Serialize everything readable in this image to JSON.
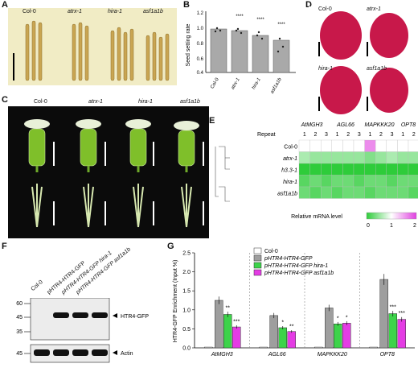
{
  "panels": {
    "a": "A",
    "b": "B",
    "c": "C",
    "d": "D",
    "e": "E",
    "f": "F",
    "g": "G"
  },
  "genotypes": [
    "Col-0",
    "atrx-1",
    "hira-1",
    "asf1a1b"
  ],
  "panel_b": {
    "ylabel": "Seed setting rate",
    "yticks": [
      "1.2",
      "1.0",
      "0.8",
      "0.6",
      "0.4"
    ],
    "stars": [
      "",
      "****",
      "****",
      "****"
    ]
  },
  "panel_e": {
    "genes": [
      "AtMGH3",
      "AGL66",
      "MAPKKK20",
      "OPT8"
    ],
    "repeat_label": "Repeat",
    "repeats": [
      "1",
      "2",
      "3"
    ],
    "rows": [
      "Col-0",
      "atrx-1",
      "h3.3-1",
      "hira-1",
      "asf1a1b"
    ],
    "legend_title": "Relative mRNA level",
    "legend_ticks": [
      "0",
      "1",
      "2"
    ],
    "colors": {
      "low": "#2ecc3a",
      "mid": "#ffffff",
      "high": "#e040e0"
    },
    "values": [
      [
        1,
        1,
        1,
        1,
        1,
        1,
        1.6,
        1,
        1,
        1,
        1,
        1.8
      ],
      [
        0.6,
        0.5,
        0.5,
        0.5,
        0.5,
        0.5,
        0.4,
        0.5,
        0.6,
        0.5,
        0.5,
        0.5
      ],
      [
        0,
        0,
        0,
        0,
        0,
        0,
        0,
        0,
        0,
        0,
        0,
        0
      ],
      [
        0.2,
        0.3,
        0.2,
        0.3,
        0.3,
        0.2,
        0.3,
        0.3,
        0.2,
        0.3,
        0.3,
        0.2
      ],
      [
        0.3,
        0.2,
        0.3,
        0.2,
        0.3,
        0.3,
        0.2,
        0.3,
        0.3,
        0.3,
        0.2,
        0.3
      ]
    ]
  },
  "panel_f": {
    "lanes": [
      "Col-0",
      "pHTR4-HTR4-GFP",
      "pHTR4-HTR4-GFP hira-1",
      "pHTR4-HTR4-GFP asf1a1b"
    ],
    "markers": [
      "60",
      "45",
      "35",
      "45"
    ],
    "bands": [
      "HTR4-GFP",
      "Actin"
    ]
  },
  "chart_data": {
    "type": "bar",
    "categories": [
      "AtMGH3",
      "AGL66",
      "MAPKKK20",
      "OPT8"
    ],
    "series": [
      {
        "name": "Col-0",
        "color": "#ffffff",
        "values": [
          0.02,
          0.02,
          0.02,
          0.02
        ]
      },
      {
        "name": "pHTR4-HTR4-GFP",
        "color": "#9e9e9e",
        "values": [
          1.25,
          0.85,
          1.05,
          1.8
        ]
      },
      {
        "name": "pHTR4-HTR4-GFP hira-1",
        "color": "#3dd34a",
        "values": [
          0.88,
          0.53,
          0.63,
          0.9
        ]
      },
      {
        "name": "pHTR4-HTR4-GFP asf1a1b",
        "color": "#e43ce4",
        "values": [
          0.55,
          0.43,
          0.65,
          0.75
        ]
      }
    ],
    "stars": [
      [
        "",
        "",
        "**",
        "***"
      ],
      [
        "",
        "",
        "*",
        "**"
      ],
      [
        "",
        "",
        "*",
        "*"
      ],
      [
        "",
        "",
        "***",
        "***"
      ]
    ],
    "ylabel": "HTR4-GFP Enrichment (Input %)",
    "ylim": [
      0,
      2.5
    ],
    "yticks": [
      "0.0",
      "0.5",
      "1.0",
      "1.5",
      "2.0",
      "2.5"
    ],
    "legend": "top-right"
  }
}
